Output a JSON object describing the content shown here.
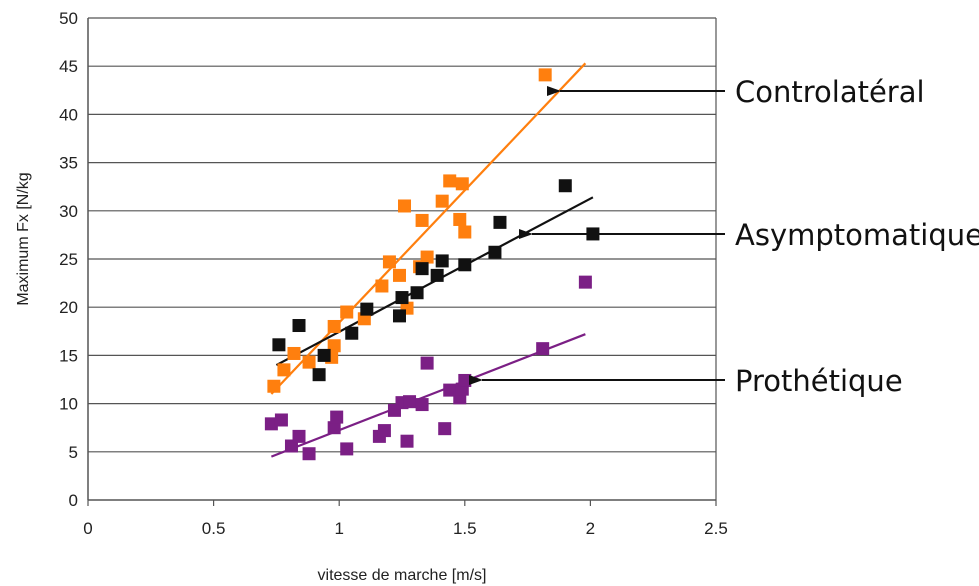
{
  "chart_data": {
    "type": "scatter",
    "title": "",
    "xlabel": "vitesse de marche [m/s]",
    "ylabel": "Maximum Fx   [N/kg",
    "xlim": [
      0,
      2.5
    ],
    "ylim": [
      0,
      50
    ],
    "xticks": [
      "0",
      "0.5",
      "1",
      "1.5",
      "2",
      "2.5"
    ],
    "yticks": [
      "0",
      "5",
      "10",
      "15",
      "20",
      "25",
      "30",
      "35",
      "40",
      "45",
      "50"
    ],
    "grid": "horizontal",
    "legend": "none",
    "series": [
      {
        "name": "Controlatéral",
        "color": "#ff7f0e",
        "points": [
          [
            0.74,
            11.8
          ],
          [
            0.78,
            13.5
          ],
          [
            0.82,
            15.2
          ],
          [
            0.88,
            14.3
          ],
          [
            0.97,
            14.8
          ],
          [
            0.98,
            16.0
          ],
          [
            0.98,
            18.0
          ],
          [
            1.03,
            19.5
          ],
          [
            1.1,
            18.8
          ],
          [
            1.17,
            22.2
          ],
          [
            1.2,
            24.7
          ],
          [
            1.24,
            23.3
          ],
          [
            1.27,
            19.9
          ],
          [
            1.26,
            30.5
          ],
          [
            1.32,
            24.2
          ],
          [
            1.33,
            29.0
          ],
          [
            1.35,
            25.2
          ],
          [
            1.41,
            31.0
          ],
          [
            1.44,
            33.1
          ],
          [
            1.48,
            29.1
          ],
          [
            1.49,
            32.8
          ],
          [
            1.5,
            27.8
          ],
          [
            1.82,
            44.1
          ]
        ],
        "trend": [
          [
            0.73,
            11.0
          ],
          [
            1.98,
            45.3
          ]
        ]
      },
      {
        "name": "Asymptomatique",
        "color": "#111111",
        "points": [
          [
            0.76,
            16.1
          ],
          [
            0.84,
            18.1
          ],
          [
            0.92,
            13.0
          ],
          [
            0.94,
            15.0
          ],
          [
            1.05,
            17.3
          ],
          [
            1.11,
            19.8
          ],
          [
            1.24,
            19.1
          ],
          [
            1.25,
            21.0
          ],
          [
            1.31,
            21.5
          ],
          [
            1.33,
            24.0
          ],
          [
            1.39,
            23.3
          ],
          [
            1.41,
            24.8
          ],
          [
            1.5,
            24.4
          ],
          [
            1.62,
            25.7
          ],
          [
            1.64,
            28.8
          ],
          [
            1.9,
            32.6
          ],
          [
            2.01,
            27.6
          ]
        ],
        "trend": [
          [
            0.75,
            14.0
          ],
          [
            2.01,
            31.4
          ]
        ]
      },
      {
        "name": "Prothétique",
        "color": "#7b1f85",
        "points": [
          [
            0.73,
            7.9
          ],
          [
            0.77,
            8.3
          ],
          [
            0.81,
            5.6
          ],
          [
            0.84,
            6.6
          ],
          [
            0.88,
            4.8
          ],
          [
            0.98,
            7.5
          ],
          [
            0.99,
            8.6
          ],
          [
            1.03,
            5.3
          ],
          [
            1.16,
            6.6
          ],
          [
            1.18,
            7.2
          ],
          [
            1.22,
            9.3
          ],
          [
            1.25,
            10.1
          ],
          [
            1.27,
            6.1
          ],
          [
            1.28,
            10.2
          ],
          [
            1.33,
            9.9
          ],
          [
            1.35,
            14.2
          ],
          [
            1.42,
            7.4
          ],
          [
            1.44,
            11.4
          ],
          [
            1.48,
            10.6
          ],
          [
            1.49,
            11.5
          ],
          [
            1.5,
            12.4
          ],
          [
            1.81,
            15.7
          ],
          [
            1.98,
            22.6
          ]
        ],
        "trend": [
          [
            0.73,
            4.5
          ],
          [
            1.98,
            17.2
          ]
        ]
      }
    ],
    "annotations": [
      {
        "label": "Controlatéral",
        "color": "#111111"
      },
      {
        "label": "Asymptomatique",
        "color": "#111111"
      },
      {
        "label": "Prothétique",
        "color": "#111111"
      }
    ]
  }
}
